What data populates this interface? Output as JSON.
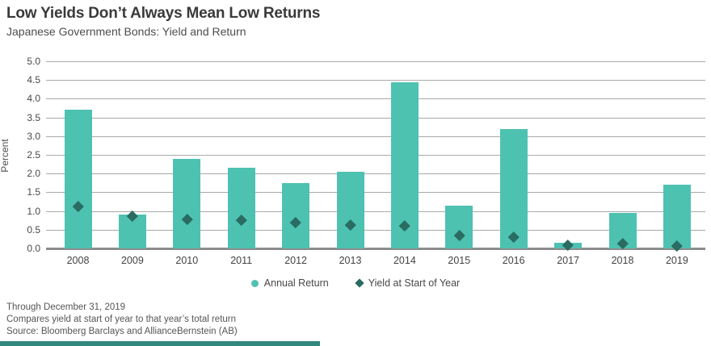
{
  "header": {
    "title": "Low Yields Don’t Always Mean Low Returns",
    "subtitle": "Japanese Government Bonds: Yield and Return"
  },
  "chart_data": {
    "type": "bar",
    "categories": [
      "2008",
      "2009",
      "2010",
      "2011",
      "2012",
      "2013",
      "2014",
      "2015",
      "2016",
      "2017",
      "2018",
      "2019"
    ],
    "series": [
      {
        "name": "Annual Return",
        "type": "bar",
        "values": [
          3.7,
          0.9,
          2.4,
          2.15,
          1.75,
          2.05,
          4.45,
          1.15,
          3.2,
          0.15,
          0.95,
          1.7
        ]
      },
      {
        "name": "Yield at Start of Year",
        "type": "scatter-diamond",
        "values": [
          1.12,
          0.86,
          0.79,
          0.76,
          0.7,
          0.64,
          0.6,
          0.35,
          0.31,
          0.1,
          0.13,
          0.08
        ]
      }
    ],
    "title": "Low Yields Don’t Always Mean Low Returns",
    "subtitle": "Japanese Government Bonds: Yield and Return",
    "xlabel": "",
    "ylabel": "Percent",
    "ylim": [
      0.0,
      5.0
    ],
    "ytick_labels": [
      "5.0",
      "4.5",
      "4.0",
      "3.5",
      "3.0",
      "2.5",
      "2.0",
      "1.5",
      "1.0",
      "0.5",
      "0.0"
    ],
    "grid": "horizontal",
    "legend_position": "bottom"
  },
  "legend": {
    "items": [
      {
        "label": "Annual Return",
        "marker": "circle-icon"
      },
      {
        "label": "Yield at Start of Year",
        "marker": "diamond-icon"
      }
    ]
  },
  "footnotes": [
    "Through December 31, 2019",
    "Compares yield at start of year to that year’s total return",
    "Source: Bloomberg Barclays and AllianceBernstein (AB)"
  ],
  "colors": {
    "bar": "#4ec2b1",
    "diamond": "#2a6b62",
    "grid": "#a9a9a9",
    "baseline": "#8c8c8c",
    "accent_bar": "#31887c"
  }
}
